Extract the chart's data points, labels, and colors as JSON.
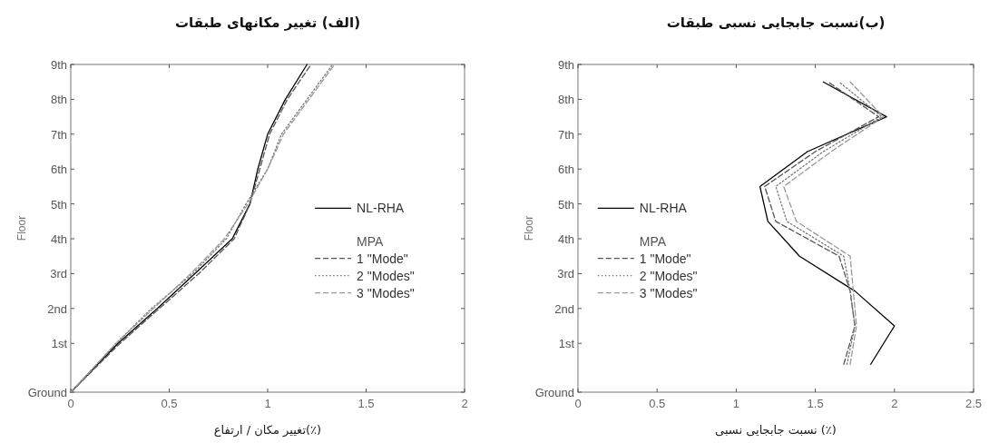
{
  "chart_data": [
    {
      "type": "line",
      "title": "(الف) تغییر مکانهای طبقات",
      "xlabel": "(٪)تغییر مکان / ارتفاع",
      "ylabel": "Floor",
      "xlim": [
        0,
        2
      ],
      "xticks": [
        0,
        0.5,
        1,
        1.5,
        2
      ],
      "ylim": [
        0,
        9.4
      ],
      "yticks": [
        {
          "value": 0,
          "label": "Ground"
        },
        {
          "value": 1.4,
          "label": "1st"
        },
        {
          "value": 2.4,
          "label": "2nd"
        },
        {
          "value": 3.4,
          "label": "3rd"
        },
        {
          "value": 4.4,
          "label": "4th"
        },
        {
          "value": 5.4,
          "label": "5th"
        },
        {
          "value": 6.4,
          "label": "6th"
        },
        {
          "value": 7.4,
          "label": "7th"
        },
        {
          "value": 8.4,
          "label": "8th"
        },
        {
          "value": 9.4,
          "label": "9th"
        }
      ],
      "legend": "right",
      "annotations": [
        "MPA"
      ],
      "series": [
        {
          "name": "NL-RHA",
          "color": "#000000",
          "line_style": "solid",
          "x": [
            0,
            0.24,
            0.44,
            0.63,
            0.82,
            0.91,
            0.95,
            1.0,
            1.09,
            1.2
          ],
          "values": [
            0,
            1.4,
            2.4,
            3.4,
            4.4,
            5.4,
            6.4,
            7.4,
            8.4,
            9.4
          ]
        },
        {
          "name": "1 \"Mode\"",
          "color": "#555555",
          "line_style": "dashed",
          "x": [
            0,
            0.25,
            0.45,
            0.65,
            0.83,
            0.91,
            0.96,
            1.01,
            1.1,
            1.22
          ],
          "values": [
            0,
            1.4,
            2.4,
            3.4,
            4.4,
            5.4,
            6.4,
            7.4,
            8.4,
            9.4
          ]
        },
        {
          "name": "2 \"Modes\"",
          "color": "#777777",
          "line_style": "dotted",
          "x": [
            0,
            0.23,
            0.41,
            0.62,
            0.79,
            0.89,
            1.0,
            1.07,
            1.2,
            1.33
          ],
          "values": [
            0,
            1.4,
            2.4,
            3.4,
            4.4,
            5.4,
            6.4,
            7.4,
            8.4,
            9.4
          ]
        },
        {
          "name": "3 \"Modes\"",
          "color": "#999999",
          "line_style": "dashed",
          "x": [
            0,
            0.23,
            0.42,
            0.61,
            0.78,
            0.9,
            1.0,
            1.08,
            1.21,
            1.34
          ],
          "values": [
            0,
            1.4,
            2.4,
            3.4,
            4.4,
            5.4,
            6.4,
            7.4,
            8.4,
            9.4
          ]
        }
      ]
    },
    {
      "type": "line",
      "title": "(ب)نسبت جابجایی نسبی طبقات",
      "xlabel": "(٪) نسبت جابجایی نسبی",
      "ylabel": "Floor",
      "xlim": [
        0,
        2.5
      ],
      "xticks": [
        0,
        0.5,
        1,
        1.5,
        2,
        2.5
      ],
      "ylim": [
        0,
        9.4
      ],
      "yticks": [
        {
          "value": 0,
          "label": "Ground"
        },
        {
          "value": 1.4,
          "label": "1st"
        },
        {
          "value": 2.4,
          "label": "2nd"
        },
        {
          "value": 3.4,
          "label": "3rd"
        },
        {
          "value": 4.4,
          "label": "4th"
        },
        {
          "value": 5.4,
          "label": "5th"
        },
        {
          "value": 6.4,
          "label": "6th"
        },
        {
          "value": 7.4,
          "label": "7th"
        },
        {
          "value": 8.4,
          "label": "8th"
        },
        {
          "value": 9.4,
          "label": "9th"
        }
      ],
      "legend": "left",
      "annotations": [
        "MPA"
      ],
      "series": [
        {
          "name": "NL-RHA",
          "color": "#000000",
          "line_style": "solid",
          "x": [
            1.85,
            2.0,
            1.75,
            1.4,
            1.2,
            1.15,
            1.45,
            1.95,
            1.55
          ],
          "values": [
            0.8,
            1.9,
            2.9,
            3.9,
            4.9,
            5.9,
            6.9,
            7.9,
            8.9
          ]
        },
        {
          "name": "1 \"Mode\"",
          "color": "#555555",
          "line_style": "dashed",
          "x": [
            1.68,
            1.75,
            1.72,
            1.65,
            1.25,
            1.18,
            1.5,
            1.9,
            1.58
          ],
          "values": [
            0.8,
            1.9,
            2.9,
            3.9,
            4.9,
            5.9,
            6.9,
            7.9,
            8.9
          ]
        },
        {
          "name": "2 \"Modes\"",
          "color": "#777777",
          "line_style": "dotted",
          "x": [
            1.7,
            1.75,
            1.72,
            1.68,
            1.32,
            1.25,
            1.55,
            1.92,
            1.65
          ],
          "values": [
            0.8,
            1.9,
            2.9,
            3.9,
            4.9,
            5.9,
            6.9,
            7.9,
            8.9
          ]
        },
        {
          "name": "3 \"Modes\"",
          "color": "#999999",
          "line_style": "dashed",
          "x": [
            1.72,
            1.76,
            1.74,
            1.72,
            1.38,
            1.3,
            1.6,
            1.93,
            1.72
          ],
          "values": [
            0.8,
            1.9,
            2.9,
            3.9,
            4.9,
            5.9,
            6.9,
            7.9,
            8.9
          ]
        }
      ]
    }
  ]
}
